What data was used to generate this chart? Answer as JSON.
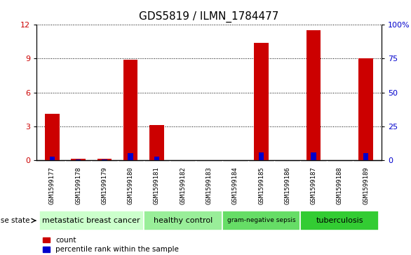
{
  "title": "GDS5819 / ILMN_1784477",
  "samples": [
    "GSM1599177",
    "GSM1599178",
    "GSM1599179",
    "GSM1599180",
    "GSM1599181",
    "GSM1599182",
    "GSM1599183",
    "GSM1599184",
    "GSM1599185",
    "GSM1599186",
    "GSM1599187",
    "GSM1599188",
    "GSM1599189"
  ],
  "count_values": [
    4.1,
    0.15,
    0.15,
    8.9,
    3.1,
    0.0,
    0.0,
    0.0,
    10.4,
    0.0,
    11.5,
    0.0,
    9.0
  ],
  "percentile_values": [
    2.5,
    0.7,
    0.7,
    5.0,
    2.7,
    0.0,
    0.0,
    0.0,
    5.7,
    0.0,
    5.7,
    0.0,
    5.2
  ],
  "ylim_left": [
    0,
    12
  ],
  "ylim_right": [
    0,
    100
  ],
  "yticks_left": [
    0,
    3,
    6,
    9,
    12
  ],
  "yticks_right": [
    0,
    25,
    50,
    75,
    100
  ],
  "left_color": "#cc0000",
  "right_color": "#0000cc",
  "disease_groups": [
    {
      "label": "metastatic breast cancer",
      "start": 0,
      "end": 4,
      "color": "#ccffcc",
      "fontsize": 8
    },
    {
      "label": "healthy control",
      "start": 4,
      "end": 7,
      "color": "#99ee99",
      "fontsize": 8
    },
    {
      "label": "gram-negative sepsis",
      "start": 7,
      "end": 10,
      "color": "#66dd66",
      "fontsize": 6.5
    },
    {
      "label": "tuberculosis",
      "start": 10,
      "end": 13,
      "color": "#33cc33",
      "fontsize": 8
    }
  ],
  "disease_state_label": "disease state",
  "legend_count_label": "count",
  "legend_percentile_label": "percentile rank within the sample",
  "tick_label_fontsize": 6.5,
  "title_fontsize": 11,
  "axis_label_color_left": "#cc0000",
  "axis_label_color_right": "#0000cc",
  "grid_color": "#000000",
  "background_color": "#ffffff",
  "tick_area_bg": "#cccccc",
  "sample_bar_sep_color": "#aaaaaa"
}
